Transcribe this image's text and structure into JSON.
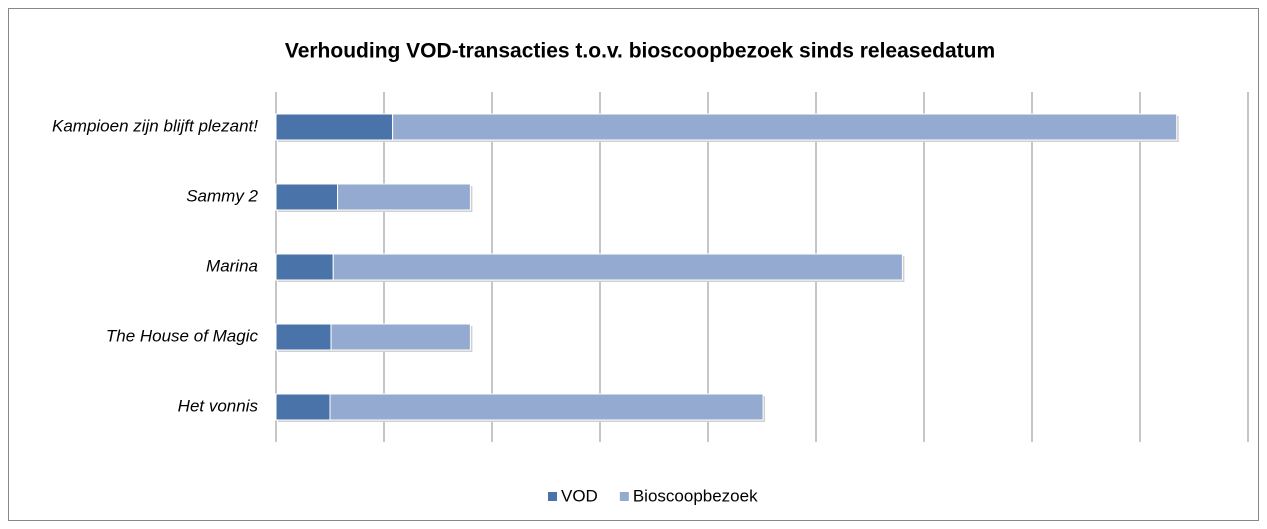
{
  "chart_data": {
    "type": "stacked-barh",
    "title": "Verhouding VOD-transacties t.o.v. bioscoopbezoek sinds releasedatum",
    "categories": [
      "Kampioen zijn blijft plezant!",
      "Sammy 2",
      "Marina",
      "The House of Magic",
      "Het vonnis"
    ],
    "series": [
      {
        "name": "VOD",
        "color": "#4a73aa",
        "values": [
          1.08,
          0.57,
          0.53,
          0.51,
          0.5
        ]
      },
      {
        "name": "Bioscoopbezoek",
        "color": "#95aad1",
        "values": [
          7.26,
          1.23,
          5.27,
          1.29,
          4.01
        ]
      }
    ],
    "xlim": [
      0,
      9
    ],
    "xticks": [
      0,
      1,
      2,
      3,
      4,
      5,
      6,
      7,
      8,
      9
    ],
    "grid": true,
    "legend": "bottom"
  }
}
